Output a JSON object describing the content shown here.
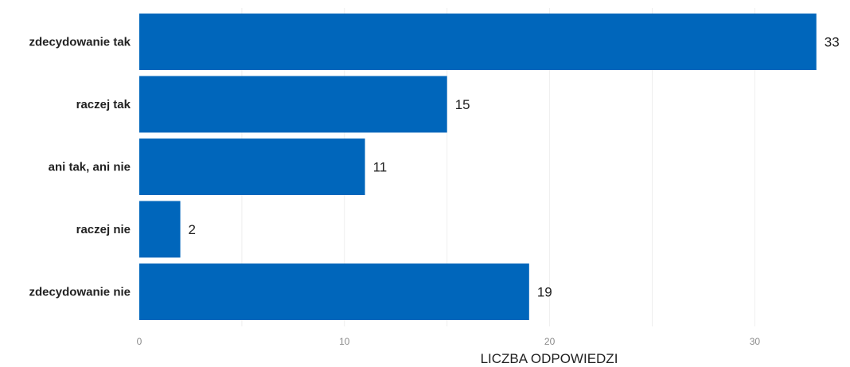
{
  "chart_data": {
    "type": "bar",
    "orientation": "horizontal",
    "categories": [
      "zdecydowanie tak",
      "raczej tak",
      "ani tak, ani nie",
      "raczej nie",
      "zdecydowanie nie"
    ],
    "values": [
      33,
      15,
      11,
      2,
      19
    ],
    "value_labels": [
      "33",
      "15",
      "11",
      "2",
      "19"
    ],
    "xlabel": "LICZBA ODPOWIEDZI",
    "xlim": [
      0,
      35
    ],
    "x_ticks": [
      0,
      10,
      20,
      30
    ],
    "x_tick_labels": [
      "0",
      "10",
      "20",
      "30"
    ],
    "grid": true,
    "colors": {
      "bar": "#0066bb",
      "grid": "#eeeeee",
      "text": "#222222",
      "tick": "#8a8a8a"
    }
  }
}
